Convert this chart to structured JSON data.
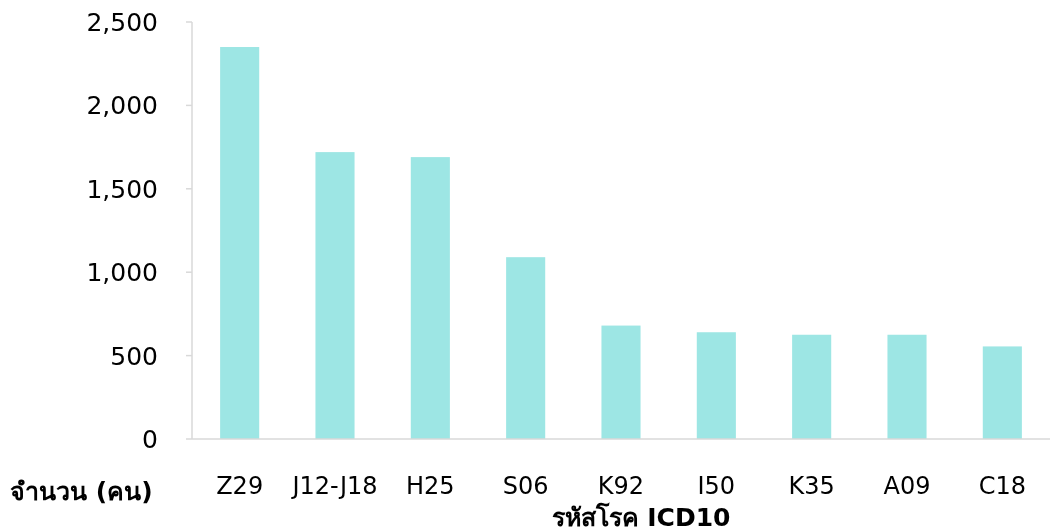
{
  "chart_data": {
    "type": "bar",
    "xlabel": "รหัสโรค ICD10",
    "ylabel": "จำนวน (คน)",
    "categories": [
      "Z29",
      "J12-J18",
      "H25",
      "S06",
      "K92",
      "I50",
      "K35",
      "A09",
      "C18"
    ],
    "values": [
      2350,
      1720,
      1690,
      1090,
      680,
      640,
      625,
      625,
      555
    ],
    "color": "#9de6e4",
    "ylim": [
      0,
      2500
    ],
    "yticks": [
      {
        "value": 0,
        "label": "0"
      },
      {
        "value": 500,
        "label": "500"
      },
      {
        "value": 1000,
        "label": "1,000"
      },
      {
        "value": 1500,
        "label": "1,500"
      },
      {
        "value": 2000,
        "label": "2,000"
      },
      {
        "value": 2500,
        "label": "2,500"
      }
    ]
  }
}
